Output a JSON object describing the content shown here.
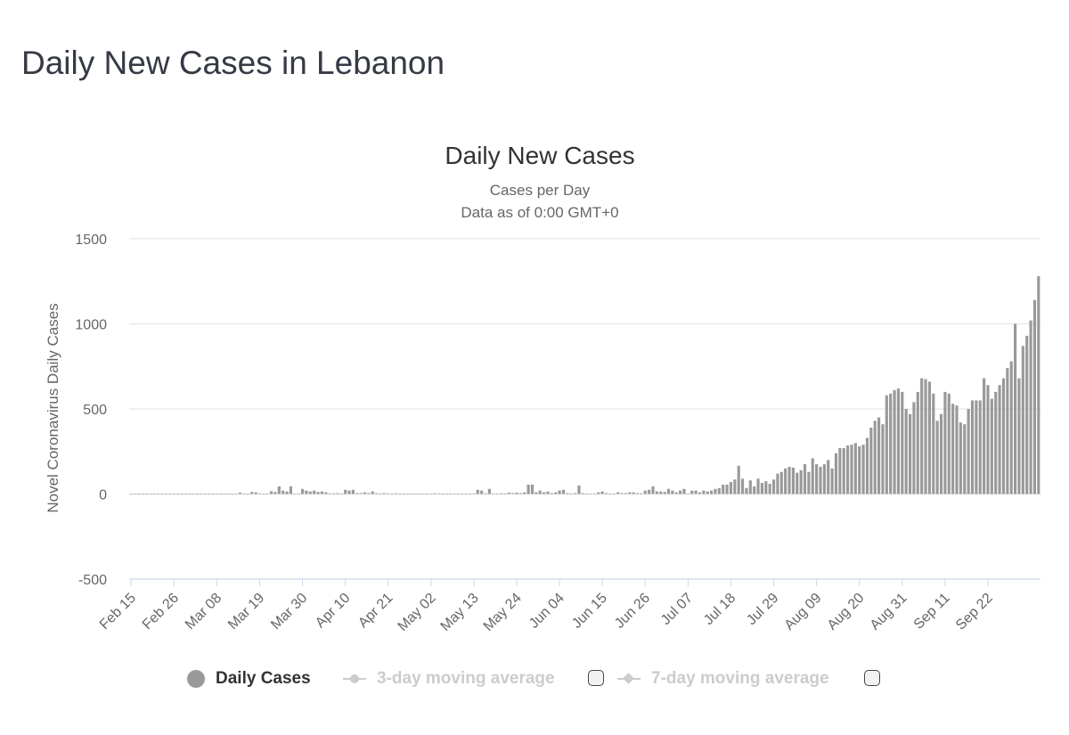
{
  "page": {
    "title": "Daily New Cases in Lebanon"
  },
  "chart_data": {
    "type": "bar",
    "title": "Daily New Cases",
    "subtitle_line1": "Cases per Day",
    "subtitle_line2": "Data as of 0:00 GMT+0",
    "ylabel": "Novel Coronavirus Daily Cases",
    "xlabel": "",
    "ylim": [
      -500,
      1500
    ],
    "yticks": [
      "1500",
      "1000",
      "500",
      "0",
      "-500"
    ],
    "ytick_values": [
      1500,
      1000,
      500,
      0,
      -500
    ],
    "xtick_labels": [
      "Feb 15",
      "Feb 26",
      "Mar 08",
      "Mar 19",
      "Mar 30",
      "Apr 10",
      "Apr 21",
      "May 02",
      "May 13",
      "May 24",
      "Jun 04",
      "Jun 15",
      "Jun 26",
      "Jul 07",
      "Jul 18",
      "Jul 29",
      "Aug 09",
      "Aug 20",
      "Aug 31",
      "Sep 11",
      "Sep 22"
    ],
    "start_date": "Feb 15",
    "series": [
      {
        "name": "Daily Cases",
        "color": "#999999",
        "values": [
          0,
          0,
          0,
          0,
          0,
          0,
          0,
          1,
          0,
          0,
          0,
          0,
          0,
          0,
          0,
          0,
          0,
          0,
          0,
          0,
          0,
          0,
          0,
          1,
          0,
          0,
          0,
          0,
          8,
          3,
          0,
          12,
          10,
          4,
          0,
          0,
          16,
          12,
          45,
          20,
          15,
          45,
          0,
          0,
          30,
          20,
          15,
          20,
          12,
          15,
          10,
          4,
          4,
          5,
          3,
          25,
          20,
          25,
          5,
          5,
          10,
          5,
          15,
          5,
          2,
          5,
          3,
          2,
          4,
          1,
          1,
          2,
          1,
          1,
          2,
          0,
          1,
          3,
          4,
          3,
          2,
          1,
          2,
          2,
          3,
          1,
          2,
          3,
          1,
          25,
          20,
          4,
          30,
          0,
          0,
          4,
          2,
          8,
          5,
          8,
          5,
          10,
          55,
          55,
          10,
          20,
          10,
          15,
          5,
          10,
          20,
          25,
          5,
          2,
          5,
          50,
          5,
          3,
          2,
          2,
          10,
          15,
          5,
          2,
          2,
          10,
          5,
          5,
          10,
          10,
          5,
          4,
          20,
          25,
          45,
          15,
          15,
          12,
          30,
          20,
          10,
          20,
          30,
          0,
          20,
          20,
          10,
          20,
          15,
          20,
          30,
          35,
          55,
          55,
          70,
          85,
          166,
          90,
          35,
          80,
          45,
          90,
          65,
          75,
          60,
          85,
          120,
          130,
          150,
          160,
          155,
          125,
          140,
          175,
          130,
          210,
          175,
          160,
          175,
          200,
          150,
          240,
          270,
          270,
          285,
          290,
          300,
          280,
          290,
          330,
          390,
          430,
          450,
          410,
          580,
          590,
          610,
          620,
          600,
          500,
          470,
          540,
          600,
          680,
          675,
          660,
          590,
          430,
          470,
          600,
          590,
          530,
          520,
          420,
          410,
          500,
          550,
          550,
          550,
          680,
          640,
          560,
          600,
          640,
          680,
          740,
          780,
          1000,
          680,
          870,
          930,
          1020,
          1140,
          1280
        ]
      }
    ],
    "legend": [
      {
        "label": "Daily Cases",
        "state": "active"
      },
      {
        "label": "3-day moving average",
        "state": "inactive"
      },
      {
        "label": "7-day moving average",
        "state": "inactive"
      }
    ],
    "grid": true,
    "legend_position": "bottom"
  }
}
